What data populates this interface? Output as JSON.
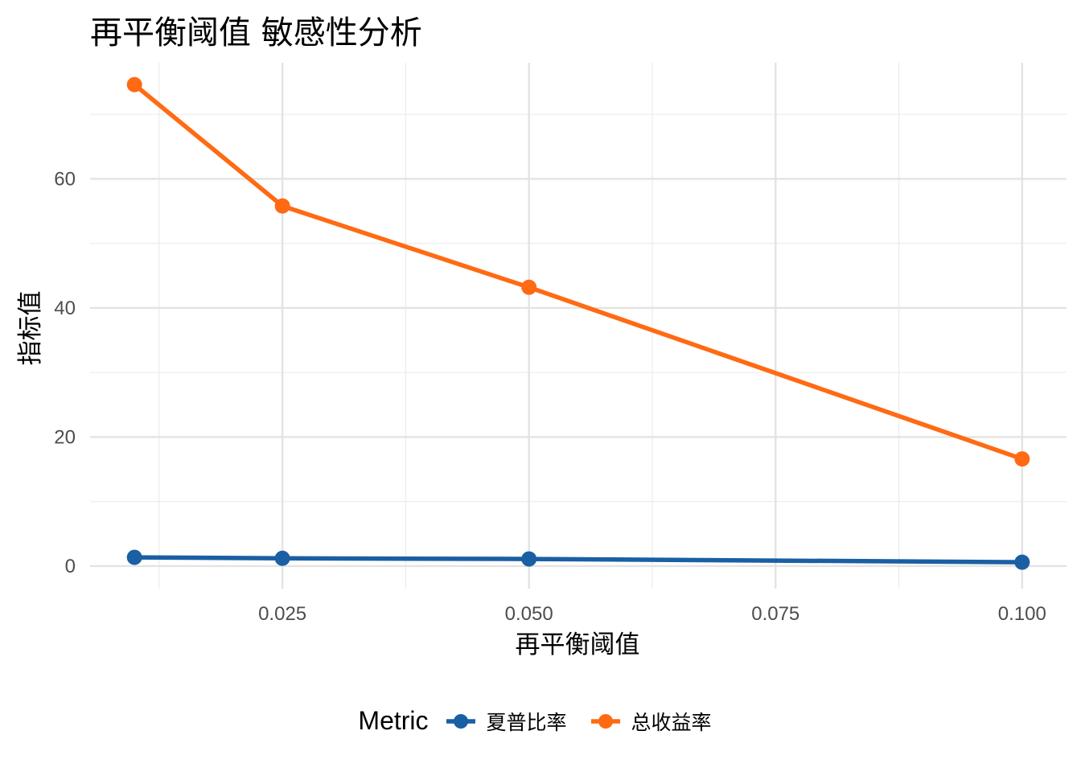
{
  "chart_data": {
    "type": "line",
    "title": "再平衡阈值 敏感性分析",
    "xlabel": "再平衡阈值",
    "ylabel": "指标值",
    "x": [
      0.01,
      0.025,
      0.05,
      0.1
    ],
    "xlim": [
      0.0055,
      0.1045
    ],
    "ylim": [
      -3.5,
      78
    ],
    "x_ticks": [
      0.025,
      0.05,
      0.075,
      0.1
    ],
    "x_tick_labels": [
      "0.025",
      "0.050",
      "0.075",
      "0.100"
    ],
    "x_minor": [
      0.0125,
      0.0375,
      0.0625,
      0.0875
    ],
    "y_ticks": [
      0,
      20,
      40,
      60
    ],
    "y_tick_labels": [
      "0",
      "20",
      "40",
      "60"
    ],
    "y_minor": [
      10,
      30,
      50,
      70
    ],
    "grid": true,
    "legend": {
      "title": "Metric",
      "position": "bottom"
    },
    "series": [
      {
        "name": "夏普比率",
        "color": "#1a5fa3",
        "values": [
          1.35,
          1.2,
          1.1,
          0.6
        ]
      },
      {
        "name": "总收益率",
        "color": "#ff6a13",
        "values": [
          74.6,
          55.8,
          43.2,
          16.6
        ]
      }
    ]
  }
}
